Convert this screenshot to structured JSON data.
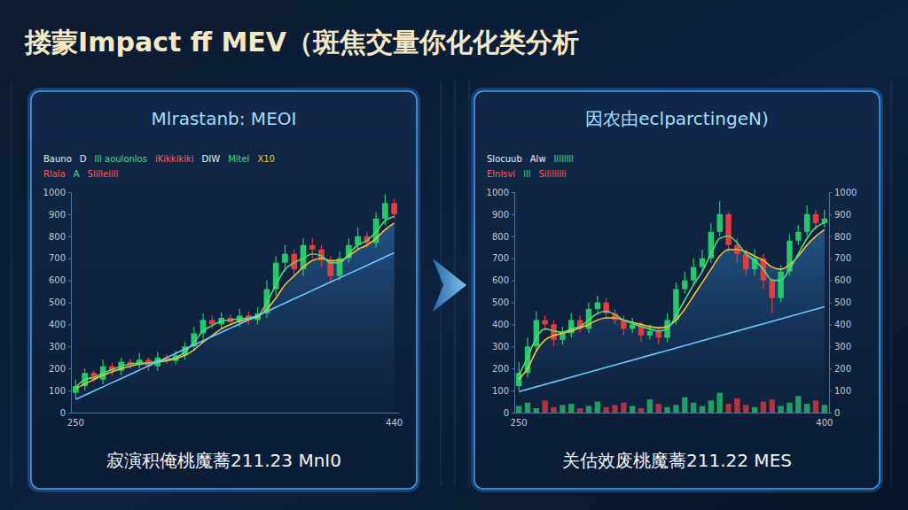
{
  "title": "搂蒙Impact ff MEV（斑焦交量你化化类分析",
  "chart_data": [
    {
      "type": "candlestick",
      "title": "Mlrastanb: MEOI",
      "subtitle": "寂演积俺桃魔蕎211.23 MnI0",
      "annotations": [
        [
          "Bauno",
          "D",
          "lll aoulonlos",
          "iKikkikiki",
          "DIW",
          "Mitel",
          "X10"
        ],
        [
          "Rlaia",
          "A",
          "Slilleiill"
        ]
      ],
      "categories": [
        "250",
        null,
        null,
        null,
        null,
        null,
        null,
        null,
        null,
        null,
        null,
        null,
        null,
        null,
        null,
        null,
        null,
        null,
        null,
        null,
        null,
        null,
        null,
        null,
        null,
        null,
        null,
        null,
        null,
        null,
        null,
        null,
        null,
        null,
        null,
        "440"
      ],
      "open": [
        90,
        120,
        180,
        150,
        210,
        190,
        230,
        220,
        240,
        210,
        250,
        235,
        260,
        300,
        360,
        420,
        400,
        430,
        410,
        440,
        420,
        450,
        560,
        680,
        720,
        650,
        760,
        740,
        690,
        620,
        700,
        760,
        800,
        770,
        880,
        950
      ],
      "high": [
        150,
        200,
        190,
        240,
        225,
        250,
        245,
        270,
        250,
        275,
        265,
        280,
        320,
        390,
        450,
        440,
        455,
        445,
        470,
        460,
        480,
        600,
        710,
        760,
        740,
        790,
        790,
        760,
        710,
        730,
        790,
        840,
        820,
        910,
        990,
        970
      ],
      "low": [
        60,
        100,
        140,
        130,
        170,
        170,
        200,
        200,
        190,
        190,
        220,
        220,
        240,
        280,
        330,
        380,
        380,
        400,
        390,
        400,
        400,
        430,
        530,
        640,
        620,
        620,
        700,
        660,
        590,
        600,
        680,
        740,
        750,
        750,
        850,
        880
      ],
      "close": [
        120,
        180,
        150,
        210,
        190,
        230,
        220,
        240,
        210,
        250,
        235,
        260,
        300,
        360,
        420,
        400,
        430,
        410,
        440,
        420,
        450,
        560,
        680,
        720,
        650,
        760,
        740,
        690,
        620,
        700,
        760,
        800,
        770,
        880,
        950,
        900
      ],
      "colors": [
        "#26c86a",
        "#26c86a",
        "#e83a3f",
        "#26c86a",
        "#e83a3f",
        "#26c86a",
        "#e83a3f",
        "#26c86a",
        "#e83a3f",
        "#26c86a",
        "#e83a3f",
        "#26c86a",
        "#26c86a",
        "#26c86a",
        "#26c86a",
        "#e83a3f",
        "#26c86a",
        "#e83a3f",
        "#26c86a",
        "#e83a3f",
        "#26c86a",
        "#26c86a",
        "#26c86a",
        "#26c86a",
        "#e83a3f",
        "#26c86a",
        "#e83a3f",
        "#e83a3f",
        "#e83a3f",
        "#26c86a",
        "#26c86a",
        "#26c86a",
        "#e83a3f",
        "#26c86a",
        "#26c86a",
        "#e83a3f"
      ],
      "series": [
        {
          "type": "line",
          "color": "#f2c230",
          "values": [
            110,
            130,
            150,
            170,
            185,
            200,
            210,
            220,
            225,
            230,
            235,
            245,
            260,
            285,
            320,
            350,
            380,
            400,
            415,
            425,
            435,
            470,
            520,
            580,
            620,
            660,
            690,
            700,
            690,
            690,
            710,
            740,
            760,
            790,
            830,
            860
          ]
        },
        {
          "type": "line",
          "color": "#4fdc7a",
          "values": [
            115,
            150,
            160,
            180,
            195,
            210,
            220,
            225,
            225,
            235,
            240,
            250,
            275,
            320,
            370,
            395,
            415,
            420,
            425,
            430,
            440,
            500,
            580,
            650,
            680,
            700,
            720,
            710,
            680,
            680,
            720,
            760,
            780,
            820,
            870,
            890
          ]
        },
        {
          "type": "line",
          "color": "#6cc8ff",
          "values": [
            60,
            79,
            98,
            117,
            136,
            155,
            174,
            193,
            212,
            231,
            250,
            269,
            288,
            307,
            326,
            345,
            364,
            383,
            402,
            421,
            440,
            459,
            478,
            497,
            516,
            535,
            554,
            573,
            592,
            611,
            630,
            649,
            668,
            687,
            706,
            725
          ]
        }
      ],
      "ylim": [
        0,
        1000
      ],
      "yticks": [
        0,
        100,
        200,
        300,
        400,
        500,
        600,
        700,
        800,
        900,
        1000
      ],
      "grid": false
    },
    {
      "type": "candlestick",
      "title": "因农由eclparctingeN)",
      "subtitle": "关估效废桃魔蕎211.22 MES",
      "annotations": [
        [
          "Slocuub",
          "Alw",
          "llllllll"
        ],
        [
          "Elnlsvi",
          "lll",
          "Silililili"
        ]
      ],
      "categories": [
        "250",
        null,
        null,
        null,
        null,
        null,
        null,
        null,
        null,
        null,
        null,
        null,
        null,
        null,
        null,
        null,
        null,
        null,
        null,
        null,
        null,
        null,
        null,
        null,
        null,
        null,
        null,
        null,
        null,
        null,
        null,
        null,
        null,
        null,
        null,
        "400"
      ],
      "open": [
        120,
        180,
        300,
        420,
        400,
        330,
        360,
        420,
        380,
        470,
        500,
        450,
        420,
        380,
        400,
        350,
        370,
        340,
        420,
        560,
        600,
        660,
        700,
        820,
        900,
        760,
        720,
        650,
        700,
        600,
        520,
        640,
        780,
        820,
        900,
        860
      ],
      "high": [
        230,
        340,
        460,
        440,
        420,
        390,
        450,
        440,
        500,
        530,
        520,
        470,
        440,
        430,
        410,
        400,
        390,
        450,
        590,
        640,
        700,
        740,
        860,
        960,
        910,
        790,
        740,
        740,
        720,
        610,
        670,
        810,
        850,
        940,
        920,
        920
      ],
      "low": [
        100,
        160,
        280,
        370,
        300,
        310,
        340,
        360,
        360,
        450,
        430,
        400,
        350,
        360,
        320,
        330,
        310,
        320,
        400,
        540,
        580,
        640,
        680,
        800,
        730,
        680,
        620,
        620,
        560,
        450,
        500,
        620,
        760,
        800,
        830,
        840
      ],
      "close": [
        180,
        300,
        420,
        400,
        330,
        360,
        420,
        380,
        470,
        500,
        450,
        420,
        380,
        400,
        350,
        370,
        340,
        420,
        560,
        600,
        660,
        700,
        820,
        900,
        760,
        720,
        650,
        700,
        600,
        520,
        640,
        780,
        820,
        900,
        860,
        880
      ],
      "colors": [
        "#26c86a",
        "#26c86a",
        "#26c86a",
        "#e83a3f",
        "#e83a3f",
        "#26c86a",
        "#26c86a",
        "#e83a3f",
        "#26c86a",
        "#26c86a",
        "#e83a3f",
        "#e83a3f",
        "#e83a3f",
        "#26c86a",
        "#e83a3f",
        "#26c86a",
        "#e83a3f",
        "#26c86a",
        "#26c86a",
        "#26c86a",
        "#26c86a",
        "#26c86a",
        "#26c86a",
        "#26c86a",
        "#e83a3f",
        "#e83a3f",
        "#e83a3f",
        "#26c86a",
        "#e83a3f",
        "#e83a3f",
        "#26c86a",
        "#26c86a",
        "#26c86a",
        "#26c86a",
        "#e83a3f",
        "#26c86a"
      ],
      "series": [
        {
          "type": "line",
          "color": "#f2c230",
          "values": [
            150,
            200,
            280,
            330,
            350,
            360,
            370,
            385,
            400,
            420,
            430,
            430,
            420,
            410,
            400,
            390,
            385,
            390,
            420,
            470,
            530,
            590,
            650,
            710,
            740,
            740,
            730,
            710,
            690,
            660,
            650,
            670,
            710,
            760,
            800,
            830
          ]
        },
        {
          "type": "line",
          "color": "#4fdc7a",
          "values": [
            170,
            250,
            340,
            380,
            370,
            365,
            380,
            390,
            420,
            450,
            460,
            445,
            420,
            405,
            390,
            380,
            370,
            380,
            440,
            510,
            580,
            640,
            720,
            790,
            800,
            770,
            720,
            690,
            650,
            600,
            600,
            650,
            720,
            790,
            840,
            860
          ]
        },
        {
          "type": "line",
          "color": "#6cc8ff",
          "values": [
            95,
            106,
            117,
            128,
            139,
            150,
            161,
            172,
            183,
            194,
            205,
            216,
            227,
            238,
            249,
            260,
            271,
            282,
            293,
            304,
            315,
            326,
            337,
            348,
            359,
            370,
            381,
            392,
            403,
            414,
            425,
            436,
            447,
            458,
            469,
            480
          ]
        },
        {
          "type": "bar",
          "colors": [
            "#26c86a",
            "#26c86a",
            "#26c86a",
            "#e83a3f",
            "#e83a3f",
            "#26c86a",
            "#26c86a",
            "#e83a3f",
            "#26c86a",
            "#26c86a",
            "#e83a3f",
            "#e83a3f",
            "#e83a3f",
            "#26c86a",
            "#e83a3f",
            "#26c86a",
            "#e83a3f",
            "#26c86a",
            "#26c86a",
            "#26c86a",
            "#26c86a",
            "#26c86a",
            "#26c86a",
            "#26c86a",
            "#e83a3f",
            "#e83a3f",
            "#e83a3f",
            "#26c86a",
            "#e83a3f",
            "#e83a3f",
            "#26c86a",
            "#26c86a",
            "#26c86a",
            "#26c86a",
            "#e83a3f",
            "#26c86a"
          ],
          "values": [
            30,
            45,
            20,
            55,
            25,
            35,
            40,
            20,
            30,
            50,
            25,
            35,
            45,
            30,
            20,
            60,
            40,
            25,
            35,
            70,
            45,
            30,
            55,
            90,
            40,
            65,
            35,
            25,
            50,
            60,
            30,
            45,
            75,
            40,
            55,
            35
          ]
        }
      ],
      "ylim": [
        0,
        1000
      ],
      "yticks": [
        0,
        100,
        200,
        300,
        400,
        500,
        600,
        700,
        800,
        900,
        1000
      ],
      "y2lim": [
        0,
        1000
      ],
      "y2ticks": [
        0,
        100,
        200,
        300,
        400,
        500,
        600,
        700,
        800,
        900,
        1000
      ],
      "grid": false
    }
  ]
}
